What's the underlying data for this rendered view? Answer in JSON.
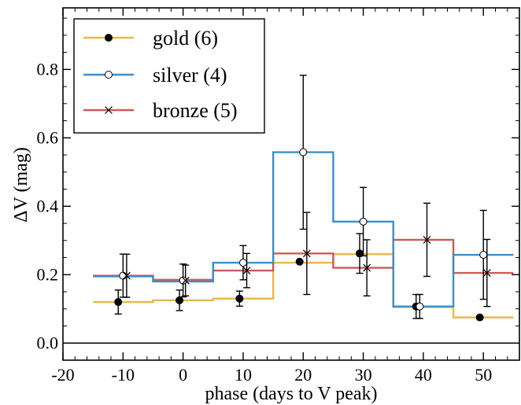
{
  "chart_data": {
    "type": "step-line-errorbar",
    "xlabel": "phase (days to V peak)",
    "ylabel": "ΔV (mag)",
    "xlim": [
      -20,
      56
    ],
    "ylim": [
      -0.05,
      0.98
    ],
    "xticks": [
      -20,
      -10,
      0,
      10,
      20,
      30,
      40,
      50
    ],
    "yticks": [
      0.0,
      0.2,
      0.4,
      0.6,
      0.8
    ],
    "xtick_labels": [
      "-20",
      "-10",
      "0",
      "10",
      "20",
      "30",
      "40",
      "50"
    ],
    "ytick_labels": [
      "0.0",
      "0.2",
      "0.4",
      "0.6",
      "0.8"
    ],
    "zero_line": 0.0,
    "legend_position": "top-left",
    "bin_edges": [
      -15,
      -5,
      5,
      15,
      25,
      35,
      45,
      55
    ],
    "series": [
      {
        "name": "gold (6)",
        "color": "#e8b850",
        "marker": "filled-circle",
        "step_values": [
          0.12,
          0.125,
          0.13,
          0.235,
          0.26,
          0.105,
          0.075
        ],
        "points": [
          {
            "x": -10.8,
            "y": 0.12,
            "err": 0.035
          },
          {
            "x": -0.6,
            "y": 0.125,
            "err": 0.03
          },
          {
            "x": 9.4,
            "y": 0.13,
            "err": 0.022
          },
          {
            "x": 19.4,
            "y": 0.238,
            "err": 0.0
          },
          {
            "x": 29.4,
            "y": 0.262,
            "err": 0.058
          },
          {
            "x": 38.8,
            "y": 0.107,
            "err": 0.035
          },
          {
            "x": 49.4,
            "y": 0.075,
            "err": 0.0
          }
        ]
      },
      {
        "name": "silver (4)",
        "color": "#3d8fc6",
        "marker": "open-circle",
        "step_values": [
          0.195,
          0.18,
          0.235,
          0.558,
          0.355,
          0.107,
          0.258
        ],
        "points": [
          {
            "x": -10.0,
            "y": 0.197,
            "err": 0.063
          },
          {
            "x": 0.0,
            "y": 0.183,
            "err": 0.048
          },
          {
            "x": 10.0,
            "y": 0.235,
            "err": 0.05
          },
          {
            "x": 20.0,
            "y": 0.558,
            "err": 0.225
          },
          {
            "x": 30.0,
            "y": 0.355,
            "err": 0.1
          },
          {
            "x": 39.4,
            "y": 0.107,
            "err": 0.035
          },
          {
            "x": 50.0,
            "y": 0.258,
            "err": 0.13
          }
        ]
      },
      {
        "name": "bronze (5)",
        "color": "#cc5a5a",
        "marker": "x",
        "step_values": [
          0.197,
          0.185,
          0.212,
          0.262,
          0.22,
          0.302,
          0.205
        ],
        "points": [
          {
            "x": -9.4,
            "y": 0.197,
            "err": 0.063
          },
          {
            "x": 0.4,
            "y": 0.183,
            "err": 0.045
          },
          {
            "x": 10.6,
            "y": 0.212,
            "err": 0.05
          },
          {
            "x": 20.6,
            "y": 0.262,
            "err": 0.12
          },
          {
            "x": 30.6,
            "y": 0.22,
            "err": 0.082
          },
          {
            "x": 40.6,
            "y": 0.302,
            "err": 0.107
          },
          {
            "x": 50.6,
            "y": 0.205,
            "err": 0.098
          }
        ]
      }
    ]
  }
}
